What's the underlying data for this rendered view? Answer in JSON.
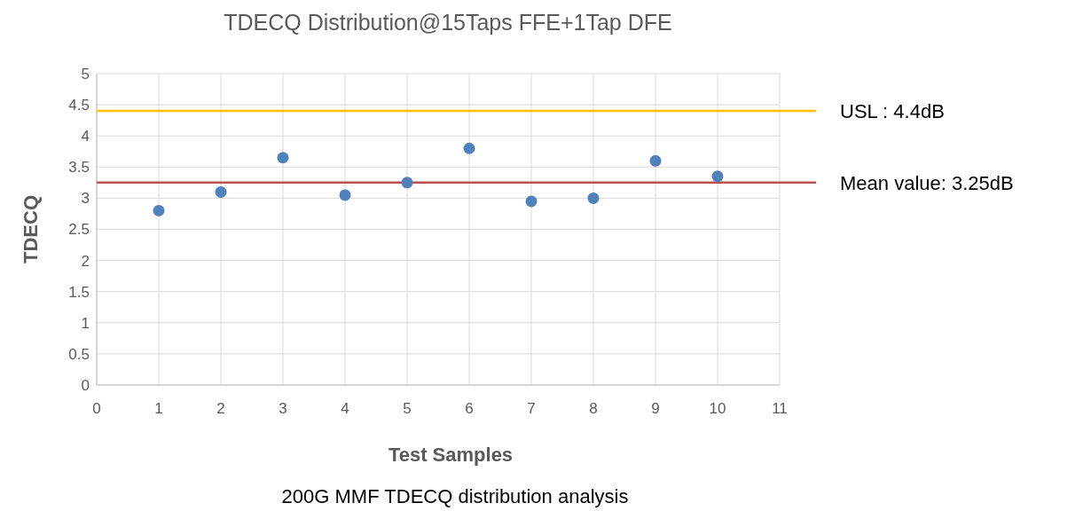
{
  "chart_data": {
    "type": "scatter",
    "title": "TDECQ Distribution@15Taps FFE+1Tap DFE",
    "xlabel": "Test Samples",
    "ylabel": "TDECQ",
    "x": [
      1,
      2,
      3,
      4,
      5,
      6,
      7,
      8,
      9,
      10
    ],
    "series": [
      {
        "color": "#4f81bd",
        "values": [
          2.8,
          3.1,
          3.65,
          3.05,
          3.25,
          3.8,
          2.95,
          3.0,
          3.6,
          3.35
        ]
      }
    ],
    "xlim": [
      0,
      11
    ],
    "xticks": [
      0,
      1,
      2,
      3,
      4,
      5,
      6,
      7,
      8,
      9,
      10,
      11
    ],
    "ylim": [
      0,
      5
    ],
    "yticks": [
      0,
      0.5,
      1,
      1.5,
      2,
      2.5,
      3,
      3.5,
      4,
      4.5,
      5
    ],
    "grid": true,
    "marker": "circle",
    "ref_lines": [
      {
        "axis": "y",
        "value": 4.4,
        "label": "USL : 4.4dB",
        "color": "#ffc000"
      },
      {
        "axis": "y",
        "value": 3.25,
        "label": "Mean value: 3.25dB",
        "color": "#c0504d"
      }
    ],
    "annotations": [
      "200G MMF TDECQ distribution analysis"
    ]
  }
}
